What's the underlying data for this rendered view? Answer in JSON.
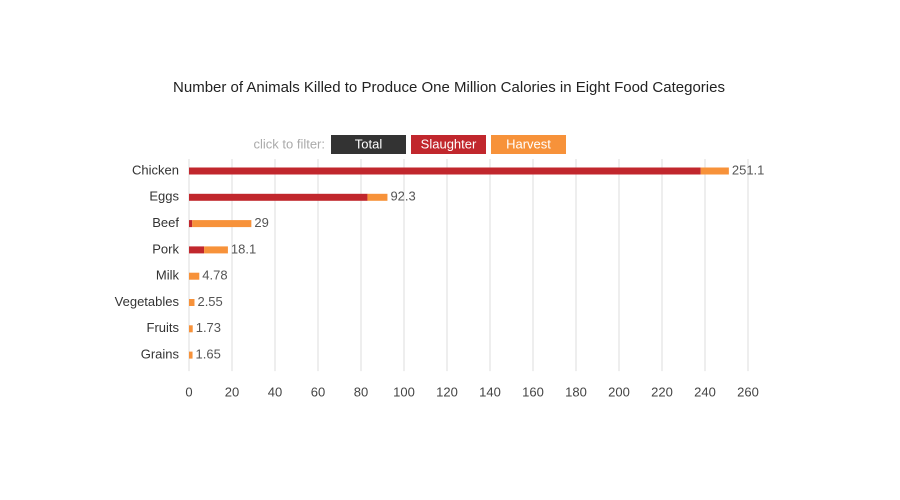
{
  "chart_data": {
    "type": "stacked_hbar",
    "title": "Number of Animals Killed to Produce One Million Calories in Eight Food Categories",
    "filter_prompt": "click to filter:",
    "total_label": "Total",
    "total_color": "#333333",
    "categories": [
      "Chicken",
      "Eggs",
      "Beef",
      "Pork",
      "Milk",
      "Vegetables",
      "Fruits",
      "Grains"
    ],
    "series": [
      {
        "name": "Slaughter",
        "color": "#c1272d",
        "values": [
          238,
          83,
          1.5,
          7,
          0,
          0,
          0,
          0
        ]
      },
      {
        "name": "Harvest",
        "color": "#f7923a",
        "values": [
          13.1,
          9.3,
          27.5,
          11.1,
          4.78,
          2.55,
          1.73,
          1.65
        ]
      }
    ],
    "totals": [
      251.1,
      92.3,
      29,
      18.1,
      4.78,
      2.55,
      1.73,
      1.65
    ],
    "xlim": [
      0,
      260
    ],
    "xticks": [
      0,
      20,
      40,
      60,
      80,
      100,
      120,
      140,
      160,
      180,
      200,
      220,
      240,
      260
    ],
    "grid": true
  }
}
